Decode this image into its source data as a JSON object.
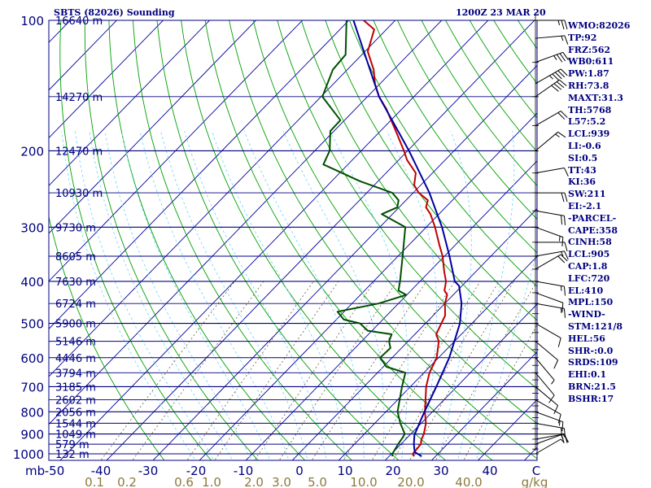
{
  "header": {
    "station": "SBTS (82026) Sounding",
    "time": "1200Z 23 MAR 20"
  },
  "indices": [
    "WMO:82026",
    "TP:92",
    "FRZ:562",
    "WB0:611",
    "PW:1.87",
    "RH:73.8",
    "MAXT:31.3",
    "TH:5768",
    "L57:5.2",
    "LCL:939",
    "LI:-0.6",
    "SI:0.5",
    "TT:43",
    "KI:36",
    "SW:211",
    "EI:-2.1",
    "-PARCEL-",
    "CAPE:358",
    "CINH:58",
    "LCL:905",
    "CAP:1.8",
    "LFC:720",
    "EL:410",
    "MPL:150",
    "-WIND-",
    "STM:121/8",
    "HEL:56",
    "SHR-:0.0",
    "SRDS:109",
    "EHI:0.1",
    "BRN:21.5",
    "BSHR:17"
  ],
  "chart_data": {
    "type": "line",
    "title": "SBTS (82026) Sounding",
    "subtitle": "1200Z 23 MAR 20",
    "xlabel": "",
    "ylabel": "mb",
    "x_unit_note": "g/kg",
    "grid": true,
    "pressure_ticks": [
      100,
      200,
      300,
      400,
      500,
      600,
      700,
      800,
      900,
      1000
    ],
    "temperature_ticks": [
      "-50",
      "-40",
      "-30",
      "-20",
      "-10",
      "0",
      "10",
      "20",
      "30",
      "40",
      "C"
    ],
    "mixing_ratio_labels": [
      "0.1",
      "0.2",
      "0.6",
      "1.0",
      "2.0",
      "3.0",
      "5.0",
      "10.0",
      "20.0",
      "40.0",
      "g/kg"
    ],
    "height_labels": [
      {
        "p": 100,
        "label": "16640 m"
      },
      {
        "p": 150,
        "label": "14270 m"
      },
      {
        "p": 200,
        "label": "12470 m"
      },
      {
        "p": 250,
        "label": "10930 m"
      },
      {
        "p": 300,
        "label": "9730 m"
      },
      {
        "p": 350,
        "label": "8605 m"
      },
      {
        "p": 400,
        "label": "7630 m"
      },
      {
        "p": 450,
        "label": "6724 m"
      },
      {
        "p": 500,
        "label": "5900 m"
      },
      {
        "p": 550,
        "label": "5146 m"
      },
      {
        "p": 600,
        "label": "4446 m"
      },
      {
        "p": 650,
        "label": "3794 m"
      },
      {
        "p": 700,
        "label": "3185 m"
      },
      {
        "p": 750,
        "label": "2602 m"
      },
      {
        "p": 800,
        "label": "2056 m"
      },
      {
        "p": 850,
        "label": "1544 m"
      },
      {
        "p": 900,
        "label": "1049 m"
      },
      {
        "p": 950,
        "label": "579 m"
      },
      {
        "p": 1000,
        "label": "132 m"
      }
    ],
    "series": [
      {
        "color": "#c00000",
        "points": [
          [
            1013,
            25.4
          ],
          [
            1000,
            24.6
          ],
          [
            950,
            24.3
          ],
          [
            925,
            23.4
          ],
          [
            900,
            22.8
          ],
          [
            850,
            21.0
          ],
          [
            800,
            18.4
          ],
          [
            700,
            13.4
          ],
          [
            650,
            11.2
          ],
          [
            600,
            9.6
          ],
          [
            550,
            6.6
          ],
          [
            530,
            4.6
          ],
          [
            500,
            3.4
          ],
          [
            480,
            2.6
          ],
          [
            460,
            0.9
          ],
          [
            450,
            0.0
          ],
          [
            430,
            -1.3
          ],
          [
            420,
            -2.8
          ],
          [
            400,
            -4.4
          ],
          [
            380,
            -6.8
          ],
          [
            350,
            -10.4
          ],
          [
            330,
            -13.4
          ],
          [
            300,
            -18.1
          ],
          [
            280,
            -21.8
          ],
          [
            270,
            -24.2
          ],
          [
            260,
            -25.3
          ],
          [
            250,
            -28.8
          ],
          [
            240,
            -31.4
          ],
          [
            225,
            -33.6
          ],
          [
            210,
            -38.2
          ],
          [
            200,
            -40.8
          ],
          [
            180,
            -46.7
          ],
          [
            160,
            -53.4
          ],
          [
            150,
            -57.5
          ],
          [
            140,
            -61.1
          ],
          [
            130,
            -64.3
          ],
          [
            118,
            -69.4
          ],
          [
            105,
            -72.6
          ],
          [
            100,
            -76.8
          ]
        ]
      },
      {
        "color": "#004f00",
        "points": [
          [
            1013,
            20.7
          ],
          [
            1000,
            20.2
          ],
          [
            950,
            19.4
          ],
          [
            925,
            19.1
          ],
          [
            900,
            18.7
          ],
          [
            850,
            15.5
          ],
          [
            800,
            12.5
          ],
          [
            700,
            8.2
          ],
          [
            650,
            6.0
          ],
          [
            630,
            0.7
          ],
          [
            600,
            -2.6
          ],
          [
            570,
            -2.4
          ],
          [
            550,
            -4.1
          ],
          [
            530,
            -5.0
          ],
          [
            520,
            -10.9
          ],
          [
            500,
            -14.1
          ],
          [
            490,
            -18.4
          ],
          [
            470,
            -21.4
          ],
          [
            450,
            -14.3
          ],
          [
            430,
            -10.1
          ],
          [
            420,
            -12.7
          ],
          [
            400,
            -14.3
          ],
          [
            350,
            -19.0
          ],
          [
            300,
            -24.5
          ],
          [
            280,
            -32.3
          ],
          [
            270,
            -30.4
          ],
          [
            260,
            -31.6
          ],
          [
            250,
            -34.5
          ],
          [
            235,
            -43.9
          ],
          [
            215,
            -55.3
          ],
          [
            200,
            -56.8
          ],
          [
            180,
            -60.8
          ],
          [
            170,
            -60.9
          ],
          [
            150,
            -69.7
          ],
          [
            130,
            -73.1
          ],
          [
            120,
            -73.5
          ],
          [
            100,
            -80.5
          ]
        ]
      },
      {
        "color": "#0000a0",
        "points": [
          [
            1013,
            27.0
          ],
          [
            990,
            24.6
          ],
          [
            950,
            22.8
          ],
          [
            905,
            21.0
          ],
          [
            850,
            19.6
          ],
          [
            800,
            18.3
          ],
          [
            700,
            15.6
          ],
          [
            600,
            12.3
          ],
          [
            500,
            7.4
          ],
          [
            450,
            3.6
          ],
          [
            410,
            -0.6
          ],
          [
            400,
            -2.5
          ],
          [
            350,
            -8.9
          ],
          [
            300,
            -16.6
          ],
          [
            250,
            -26.5
          ],
          [
            200,
            -39.7
          ],
          [
            150,
            -57.5
          ],
          [
            100,
            -79.0
          ]
        ]
      }
    ],
    "wind_barbs": [
      {
        "p": 100,
        "dir": 90,
        "spd": 25
      },
      {
        "p": 110,
        "dir": 85,
        "spd": 15
      },
      {
        "p": 125,
        "dir": 70,
        "spd": 35
      },
      {
        "p": 140,
        "dir": 60,
        "spd": 45
      },
      {
        "p": 150,
        "dir": 55,
        "spd": 40
      },
      {
        "p": 175,
        "dir": 60,
        "spd": 20
      },
      {
        "p": 200,
        "dir": 50,
        "spd": 15
      },
      {
        "p": 225,
        "dir": 80,
        "spd": 10
      },
      {
        "p": 250,
        "dir": 90,
        "spd": 20
      },
      {
        "p": 275,
        "dir": 100,
        "spd": 20
      },
      {
        "p": 300,
        "dir": 110,
        "spd": 15
      },
      {
        "p": 325,
        "dir": 90,
        "spd": 10
      },
      {
        "p": 350,
        "dir": 80,
        "spd": 15
      },
      {
        "p": 375,
        "dir": 60,
        "spd": 20
      },
      {
        "p": 400,
        "dir": 100,
        "spd": 15
      },
      {
        "p": 425,
        "dir": 110,
        "spd": 10
      },
      {
        "p": 450,
        "dir": 100,
        "spd": 15
      },
      {
        "p": 500,
        "dir": 120,
        "spd": 10
      },
      {
        "p": 550,
        "dir": 130,
        "spd": 10
      },
      {
        "p": 600,
        "dir": 140,
        "spd": 5
      },
      {
        "p": 650,
        "dir": 140,
        "spd": 10
      },
      {
        "p": 700,
        "dir": 130,
        "spd": 10
      },
      {
        "p": 750,
        "dir": 120,
        "spd": 10
      },
      {
        "p": 800,
        "dir": 110,
        "spd": 15
      },
      {
        "p": 850,
        "dir": 100,
        "spd": 20
      },
      {
        "p": 900,
        "dir": 90,
        "spd": 20
      },
      {
        "p": 925,
        "dir": 80,
        "spd": 15
      },
      {
        "p": 950,
        "dir": 70,
        "spd": 10
      },
      {
        "p": 1000,
        "dir": 60,
        "spd": 5
      }
    ],
    "colors": {
      "isobar": "#00007f",
      "isotherm": "#0000a0",
      "dry_adiabat": "#00a000",
      "moist_adiabat": "#7fd7ff",
      "mixing_ratio": "#6b5e3b",
      "axis_text": "#000080",
      "mixing_text": "#8c7a3c",
      "temperature": "#c00000",
      "dewpoint": "#004f00",
      "parcel": "#0000a0"
    }
  }
}
